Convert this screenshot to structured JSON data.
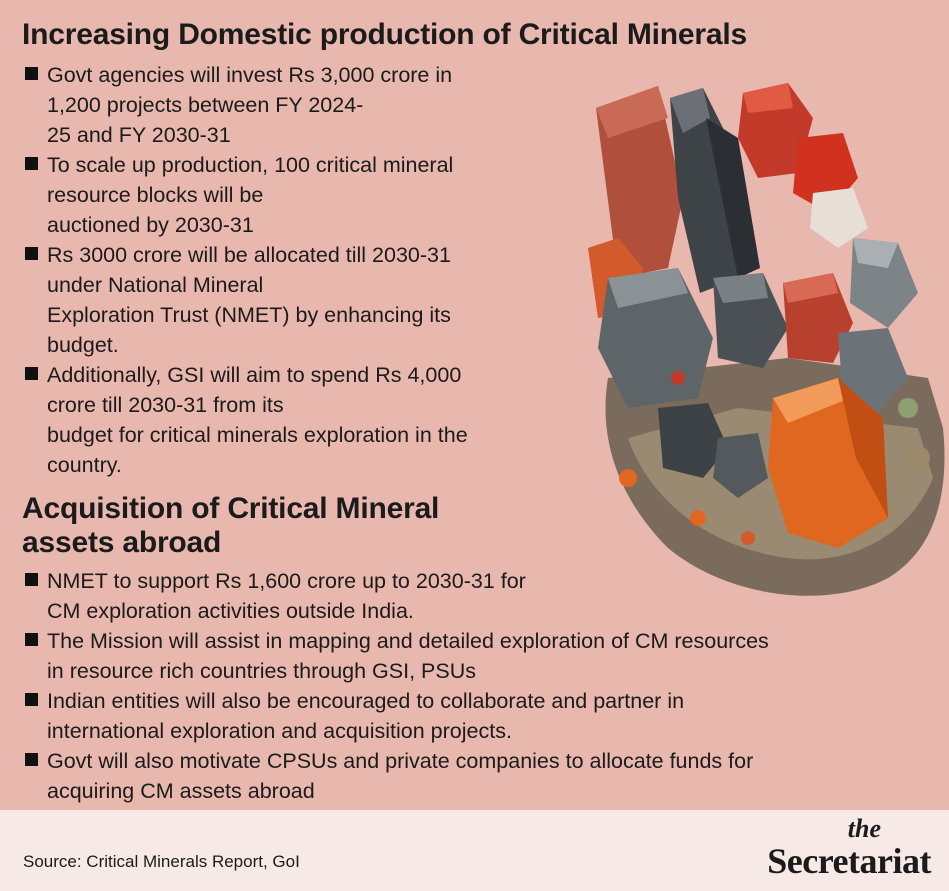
{
  "section1": {
    "title": "Increasing Domestic production of Critical Minerals",
    "bullets": [
      [
        "Govt agencies will invest Rs 3,000 crore in",
        "1,200 projects between FY 2024-",
        "25 and FY 2030-31"
      ],
      [
        "To scale up production, 100 critical mineral",
        "resource blocks will be",
        "auctioned by 2030-31"
      ],
      [
        "Rs 3000 crore will be allocated till 2030-31",
        "under National Mineral",
        "Exploration Trust (NMET) by enhancing its",
        "budget."
      ],
      [
        "Additionally, GSI will aim to spend Rs 4,000",
        "crore till 2030-31 from its",
        "budget for critical minerals exploration in the",
        "country."
      ]
    ]
  },
  "section2": {
    "title": [
      "Acquisition of Critical Mineral",
      "assets abroad"
    ],
    "bullets": [
      [
        "NMET to support Rs 1,600 crore up to 2030-31 for",
        "CM exploration activities outside India."
      ],
      [
        "The Mission will assist in mapping and detailed exploration of CM resources",
        "in resource rich countries through GSI, PSUs"
      ],
      [
        "Indian entities will also be encouraged to collaborate and partner in",
        "international exploration and acquisition projects."
      ],
      [
        "Govt will also motivate CPSUs and private companies to allocate funds for",
        "acquiring CM assets abroad"
      ]
    ]
  },
  "footer": {
    "source": "Source: Critical Minerals Report, GoI",
    "brand_prefix": "the",
    "brand_name": "Secretariat"
  },
  "colors": {
    "background": "#e8b7ad",
    "footer_background": "#f7e9e5",
    "text": "#1b1b1b"
  },
  "image": {
    "name": "critical-mineral-crystals-photo"
  }
}
